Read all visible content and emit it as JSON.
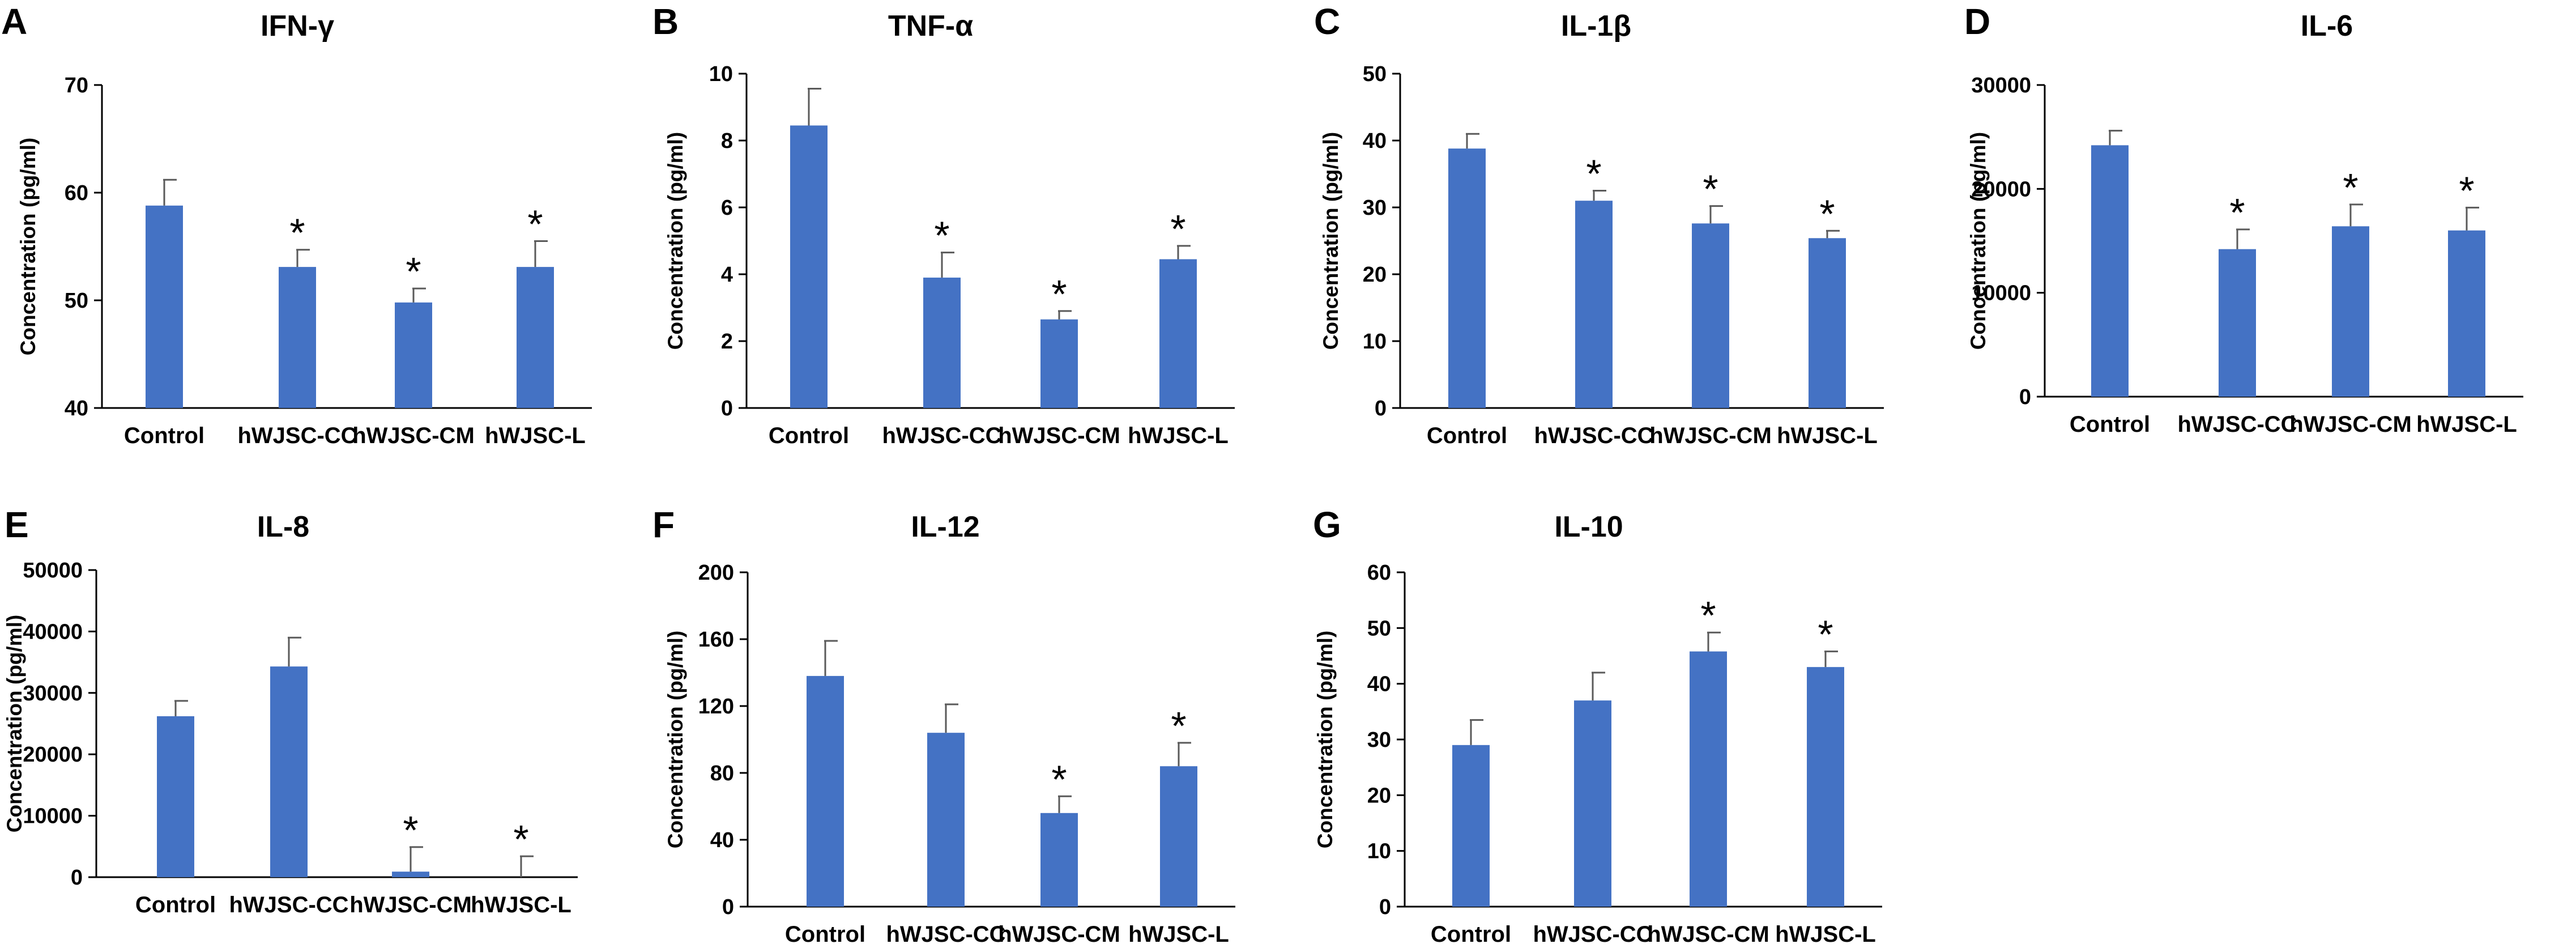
{
  "colors": {
    "bar": "#4472C4",
    "axis": "#000000",
    "error": "#5a5a5a",
    "text": "#000000"
  },
  "chart_data": [
    {
      "panel": "A",
      "type": "bar",
      "title": "IFN-γ",
      "xlabel": "",
      "ylabel": "Concentration (pg/ml)",
      "categories": [
        "Control",
        "hWJSC-CC",
        "hWJSC-CM",
        "hWJSC-L"
      ],
      "values": [
        58.8,
        53.1,
        49.8,
        53.1
      ],
      "errors": [
        2.4,
        1.6,
        1.3,
        2.4
      ],
      "significant": [
        false,
        true,
        true,
        true
      ],
      "significance_marker": "*",
      "ylim": [
        40,
        70
      ],
      "yticks": [
        40,
        50,
        60,
        70
      ],
      "ytick_labels": [
        "40",
        "50",
        "60",
        "70"
      ],
      "grid": false,
      "legend": "none"
    },
    {
      "panel": "B",
      "type": "bar",
      "title": "TNF-α",
      "xlabel": "",
      "ylabel": "Concentration (pg/ml)",
      "categories": [
        "Control",
        "hWJSC-CC",
        "hWJSC-CM",
        "hWJSC-L"
      ],
      "values": [
        8.45,
        3.9,
        2.65,
        4.45
      ],
      "errors": [
        1.1,
        0.75,
        0.25,
        0.4
      ],
      "significant": [
        false,
        true,
        true,
        true
      ],
      "significance_marker": "*",
      "ylim": [
        0,
        10
      ],
      "yticks": [
        0,
        2,
        4,
        6,
        8,
        10
      ],
      "ytick_labels": [
        "0",
        "2",
        "4",
        "6",
        "8",
        "10"
      ],
      "grid": false,
      "legend": "none"
    },
    {
      "panel": "C",
      "type": "bar",
      "title": "IL-1β",
      "xlabel": "",
      "ylabel": "Concentration (pg/ml)",
      "categories": [
        "Control",
        "hWJSC-CC",
        "hWJSC-CM",
        "hWJSC-L"
      ],
      "values": [
        38.8,
        31.0,
        27.6,
        25.4
      ],
      "errors": [
        2.2,
        1.5,
        2.6,
        1.1
      ],
      "significant": [
        false,
        true,
        true,
        true
      ],
      "significance_marker": "*",
      "ylim": [
        0,
        50
      ],
      "yticks": [
        0,
        10,
        20,
        30,
        40,
        50
      ],
      "ytick_labels": [
        "0",
        "10",
        "20",
        "30",
        "40",
        "50"
      ],
      "grid": false,
      "legend": "none"
    },
    {
      "panel": "D",
      "type": "bar",
      "title": "IL-6",
      "xlabel": "",
      "ylabel": "Concentration (pg/ml)",
      "categories": [
        "Control",
        "hWJSC-CC",
        "hWJSC-CM",
        "hWJSC-L"
      ],
      "values": [
        24200,
        14200,
        16400,
        16000
      ],
      "errors": [
        1400,
        1900,
        2100,
        2200
      ],
      "significant": [
        false,
        true,
        true,
        true
      ],
      "significance_marker": "*",
      "ylim": [
        0,
        30000
      ],
      "yticks": [
        0,
        10000,
        20000,
        30000
      ],
      "ytick_labels": [
        "0",
        "10000",
        "20000",
        "30000"
      ],
      "grid": false,
      "legend": "none"
    },
    {
      "panel": "E",
      "type": "bar",
      "title": "IL-8",
      "xlabel": "",
      "ylabel": "Concentration (pg/ml)",
      "categories": [
        "Control",
        "hWJSC-CC",
        "hWJSC-CM",
        "hWJSC-L"
      ],
      "values": [
        26200,
        34300,
        900,
        0
      ],
      "errors": [
        2500,
        4700,
        4000,
        3400
      ],
      "significant": [
        false,
        false,
        true,
        true
      ],
      "significance_marker": "*",
      "ylim": [
        0,
        50000
      ],
      "yticks": [
        0,
        10000,
        20000,
        30000,
        40000,
        50000
      ],
      "ytick_labels": [
        "0",
        "10000",
        "20000",
        "30000",
        "40000",
        "50000"
      ],
      "grid": false,
      "legend": "none"
    },
    {
      "panel": "F",
      "type": "bar",
      "title": "IL-12",
      "xlabel": "",
      "ylabel": "Concentration (pg/ml)",
      "categories": [
        "Control",
        "hWJSC-CC",
        "hWJSC-CM",
        "hWJSC-L"
      ],
      "values": [
        138,
        104,
        56,
        84
      ],
      "errors": [
        21,
        17,
        10,
        14
      ],
      "significant": [
        false,
        false,
        true,
        true
      ],
      "significance_marker": "*",
      "ylim": [
        0,
        200
      ],
      "yticks": [
        0,
        40,
        80,
        120,
        160,
        200
      ],
      "ytick_labels": [
        "0",
        "40",
        "80",
        "120",
        "160",
        "200"
      ],
      "grid": false,
      "legend": "none"
    },
    {
      "panel": "G",
      "type": "bar",
      "title": "IL-10",
      "xlabel": "",
      "ylabel": "Concentration (pg/ml)",
      "categories": [
        "Control",
        "hWJSC-CC",
        "hWJSC-CM",
        "hWJSC-L"
      ],
      "values": [
        29,
        37,
        45.8,
        43
      ],
      "errors": [
        4.5,
        5,
        3.4,
        2.8
      ],
      "significant": [
        false,
        false,
        true,
        true
      ],
      "significance_marker": "*",
      "ylim": [
        0,
        60
      ],
      "yticks": [
        0,
        10,
        20,
        30,
        40,
        50,
        60
      ],
      "ytick_labels": [
        "0",
        "10",
        "20",
        "30",
        "40",
        "50",
        "60"
      ],
      "grid": false,
      "legend": "none"
    }
  ]
}
